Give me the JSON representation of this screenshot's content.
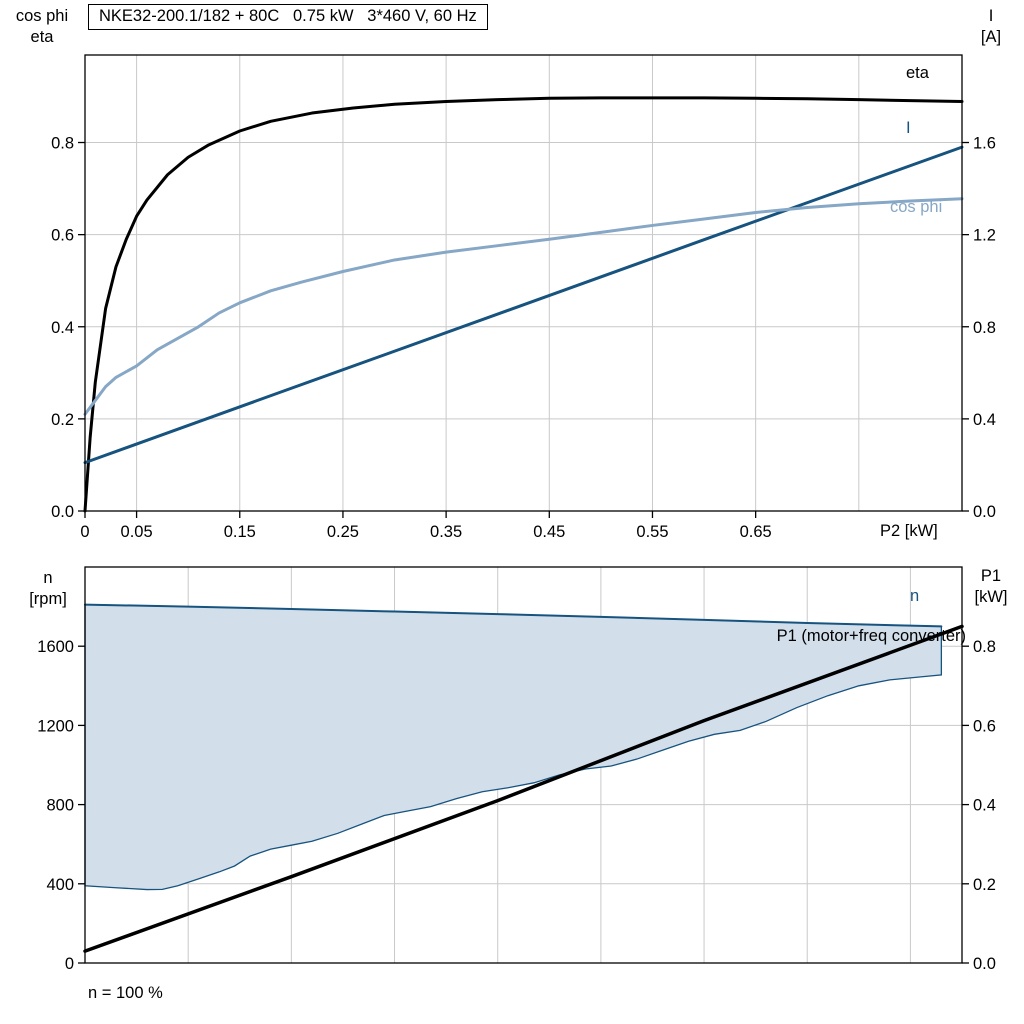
{
  "chart_data": [
    {
      "type": "line",
      "title": "NKE32-200.1/182 + 80C   0.75 kW   3*460 V, 60 Hz",
      "grid_color": "#c9c9c9",
      "frame_color": "#000000",
      "x_axis": {
        "label": "P2 [kW]",
        "range": [
          0,
          0.85
        ],
        "ticks": [
          0,
          0.05,
          0.15,
          0.25,
          0.35,
          0.45,
          0.55,
          0.65
        ],
        "tick_labels": [
          "0",
          "0.05",
          "0.15",
          "0.25",
          "0.35",
          "0.45",
          "0.55",
          "0.65"
        ],
        "gridlines": [
          0.05,
          0.15,
          0.25,
          0.35,
          0.45,
          0.55,
          0.65,
          0.75
        ]
      },
      "y_left": {
        "label_lines": [
          "cos phi",
          "eta"
        ],
        "range": [
          0,
          0.99
        ],
        "ticks": [
          0,
          0.2,
          0.4,
          0.6,
          0.8
        ],
        "tick_labels": [
          "0.0",
          "0.2",
          "0.4",
          "0.6",
          "0.8"
        ]
      },
      "y_right": {
        "label_lines": [
          "I",
          "[A]"
        ],
        "range": [
          0,
          1.98
        ],
        "ticks": [
          0,
          0.4,
          0.8,
          1.2,
          1.6
        ],
        "tick_labels": [
          "0.0",
          "0.4",
          "0.8",
          "1.2",
          "1.6"
        ]
      },
      "series": [
        {
          "name": "eta",
          "axis": "left",
          "color": "#000000",
          "width": 3,
          "points": [
            [
              0,
              0
            ],
            [
              0.005,
              0.16
            ],
            [
              0.01,
              0.28
            ],
            [
              0.02,
              0.44
            ],
            [
              0.03,
              0.53
            ],
            [
              0.04,
              0.59
            ],
            [
              0.05,
              0.64
            ],
            [
              0.06,
              0.675
            ],
            [
              0.08,
              0.73
            ],
            [
              0.1,
              0.768
            ],
            [
              0.12,
              0.795
            ],
            [
              0.15,
              0.825
            ],
            [
              0.18,
              0.846
            ],
            [
              0.22,
              0.864
            ],
            [
              0.26,
              0.875
            ],
            [
              0.3,
              0.883
            ],
            [
              0.35,
              0.889
            ],
            [
              0.4,
              0.893
            ],
            [
              0.45,
              0.896
            ],
            [
              0.5,
              0.897
            ],
            [
              0.55,
              0.897
            ],
            [
              0.6,
              0.897
            ],
            [
              0.65,
              0.896
            ],
            [
              0.7,
              0.895
            ],
            [
              0.75,
              0.893
            ],
            [
              0.8,
              0.891
            ],
            [
              0.85,
              0.889
            ]
          ]
        },
        {
          "name": "I",
          "axis": "right",
          "color": "#17537f",
          "width": 3,
          "points": [
            [
              0,
              0.21
            ],
            [
              0.2,
              0.533
            ],
            [
              0.4,
              0.855
            ],
            [
              0.6,
              1.178
            ],
            [
              0.85,
              1.58
            ]
          ]
        },
        {
          "name": "cos phi",
          "axis": "left",
          "color": "#86a7c5",
          "width": 3,
          "points": [
            [
              0,
              0.21
            ],
            [
              0.01,
              0.24
            ],
            [
              0.02,
              0.27
            ],
            [
              0.03,
              0.29
            ],
            [
              0.05,
              0.315
            ],
            [
              0.07,
              0.35
            ],
            [
              0.09,
              0.375
            ],
            [
              0.11,
              0.4
            ],
            [
              0.13,
              0.43
            ],
            [
              0.15,
              0.452
            ],
            [
              0.18,
              0.478
            ],
            [
              0.21,
              0.497
            ],
            [
              0.25,
              0.52
            ],
            [
              0.3,
              0.545
            ],
            [
              0.35,
              0.562
            ],
            [
              0.4,
              0.576
            ],
            [
              0.45,
              0.59
            ],
            [
              0.5,
              0.605
            ],
            [
              0.55,
              0.62
            ],
            [
              0.6,
              0.634
            ],
            [
              0.65,
              0.648
            ],
            [
              0.7,
              0.659
            ],
            [
              0.75,
              0.667
            ],
            [
              0.8,
              0.673
            ],
            [
              0.85,
              0.678
            ]
          ]
        }
      ]
    },
    {
      "type": "line",
      "grid_color": "#c9c9c9",
      "frame_color": "#000000",
      "footnote": "n = 100 %",
      "x_axis": {
        "label": "",
        "range": [
          0,
          0.85
        ],
        "ticks": [],
        "tick_labels": [],
        "gridlines": [
          0.1,
          0.2,
          0.3,
          0.4,
          0.5,
          0.6,
          0.7,
          0.8
        ]
      },
      "y_left": {
        "label_lines": [
          "n",
          "[rpm]"
        ],
        "range": [
          0,
          2000
        ],
        "ticks": [
          0,
          400,
          800,
          1200,
          1600
        ],
        "tick_labels": [
          "0",
          "400",
          "800",
          "1200",
          "1600"
        ]
      },
      "y_right": {
        "label_lines": [
          "P1",
          "[kW]"
        ],
        "range": [
          0,
          1.0
        ],
        "ticks": [
          0,
          0.2,
          0.4,
          0.6,
          0.8
        ],
        "tick_labels": [
          "0.0",
          "0.2",
          "0.4",
          "0.6",
          "0.8"
        ]
      },
      "region": {
        "fill": "#d2dfeb",
        "stroke": "#17537f",
        "upper_series": 0,
        "lower": [
          [
            0,
            390
          ],
          [
            0.03,
            380
          ],
          [
            0.06,
            371
          ],
          [
            0.075,
            372
          ],
          [
            0.09,
            390
          ],
          [
            0.11,
            425
          ],
          [
            0.13,
            460
          ],
          [
            0.145,
            490
          ],
          [
            0.16,
            540
          ],
          [
            0.18,
            575
          ],
          [
            0.2,
            595
          ],
          [
            0.22,
            615
          ],
          [
            0.245,
            655
          ],
          [
            0.27,
            705
          ],
          [
            0.29,
            745
          ],
          [
            0.31,
            765
          ],
          [
            0.335,
            790
          ],
          [
            0.36,
            830
          ],
          [
            0.385,
            865
          ],
          [
            0.41,
            885
          ],
          [
            0.435,
            910
          ],
          [
            0.46,
            950
          ],
          [
            0.485,
            980
          ],
          [
            0.51,
            995
          ],
          [
            0.535,
            1030
          ],
          [
            0.56,
            1075
          ],
          [
            0.585,
            1120
          ],
          [
            0.61,
            1155
          ],
          [
            0.635,
            1175
          ],
          [
            0.66,
            1220
          ],
          [
            0.69,
            1290
          ],
          [
            0.72,
            1350
          ],
          [
            0.75,
            1400
          ],
          [
            0.78,
            1430
          ],
          [
            0.81,
            1445
          ],
          [
            0.83,
            1455
          ]
        ]
      },
      "series": [
        {
          "name": "n",
          "axis": "left",
          "color": "#17537f",
          "width": 2,
          "points": [
            [
              0,
              1810
            ],
            [
              0.1,
              1800
            ],
            [
              0.2,
              1788
            ],
            [
              0.3,
              1775
            ],
            [
              0.4,
              1762
            ],
            [
              0.5,
              1748
            ],
            [
              0.6,
              1733
            ],
            [
              0.7,
              1717
            ],
            [
              0.83,
              1700
            ]
          ]
        },
        {
          "name": "P1 (motor+freq converter)",
          "axis": "right",
          "color": "#000000",
          "width": 3.5,
          "points": [
            [
              0,
              0.03
            ],
            [
              0.2,
              0.218
            ],
            [
              0.4,
              0.41
            ],
            [
              0.6,
              0.612
            ],
            [
              0.85,
              0.85
            ]
          ]
        }
      ]
    }
  ]
}
